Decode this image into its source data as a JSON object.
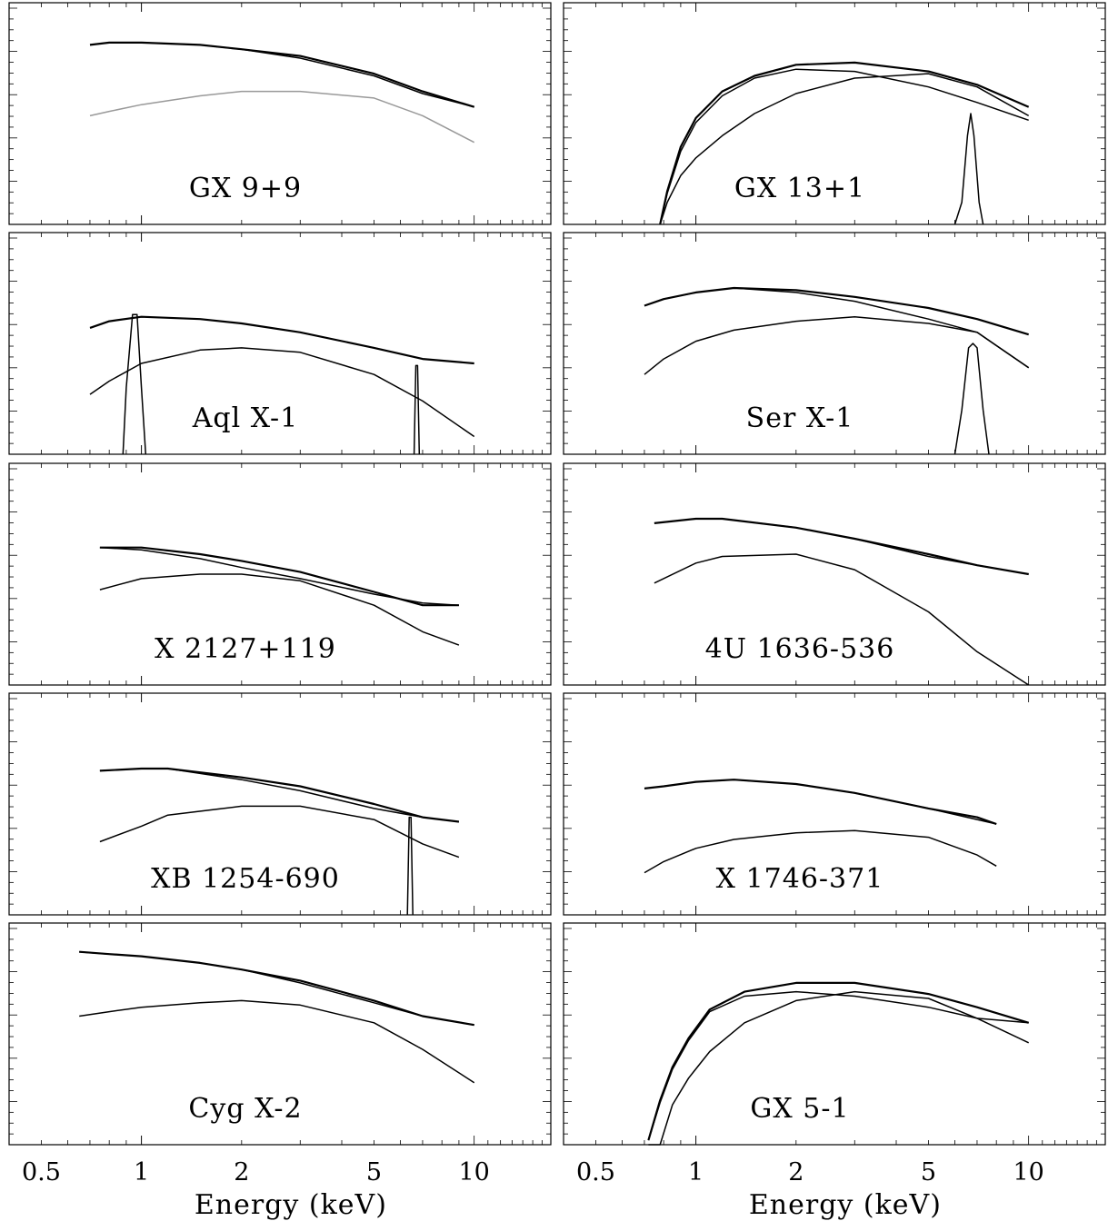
{
  "figure": {
    "xlabel": "Energy (keV)",
    "xticks": [
      "0.5",
      "1",
      "2",
      "5",
      "10"
    ]
  },
  "chart_data": [
    {
      "type": "line",
      "source": "GX 9+9",
      "xscale": "log",
      "xlim": [
        0.4,
        17
      ],
      "series": [
        {
          "style": "data",
          "color": "#000000",
          "x": [
            0.7,
            0.8,
            1.0,
            1.5,
            2,
            3,
            5,
            7,
            10
          ],
          "y": [
            0.81,
            0.82,
            0.82,
            0.81,
            0.79,
            0.76,
            0.68,
            0.6,
            0.53
          ]
        },
        {
          "style": "model",
          "color": "#000000",
          "x": [
            0.7,
            0.8,
            1.0,
            1.5,
            2,
            3,
            5,
            7,
            10
          ],
          "y": [
            0.81,
            0.82,
            0.82,
            0.81,
            0.79,
            0.75,
            0.67,
            0.59,
            0.53
          ]
        },
        {
          "style": "model",
          "color": "#999999",
          "x": [
            0.7,
            0.8,
            1.0,
            1.5,
            2,
            3,
            5,
            7,
            10
          ],
          "y": [
            0.49,
            0.51,
            0.54,
            0.58,
            0.6,
            0.6,
            0.57,
            0.49,
            0.37
          ]
        }
      ]
    },
    {
      "type": "line",
      "source": "GX 13+1",
      "xscale": "log",
      "xlim": [
        0.4,
        17
      ],
      "series": [
        {
          "style": "data",
          "color": "#000000",
          "x": [
            0.78,
            0.82,
            0.9,
            1.0,
            1.2,
            1.5,
            2,
            3,
            5,
            7,
            10
          ],
          "y": [
            0.0,
            0.15,
            0.35,
            0.48,
            0.6,
            0.67,
            0.72,
            0.73,
            0.69,
            0.63,
            0.53
          ]
        },
        {
          "style": "model",
          "color": "#000000",
          "x": [
            0.78,
            0.82,
            0.9,
            1.0,
            1.2,
            1.5,
            2,
            3,
            5,
            7,
            10
          ],
          "y": [
            0.0,
            0.14,
            0.33,
            0.46,
            0.58,
            0.66,
            0.7,
            0.69,
            0.62,
            0.55,
            0.47
          ]
        },
        {
          "style": "model",
          "color": "#000000",
          "x": [
            0.78,
            0.82,
            0.9,
            1.0,
            1.2,
            1.5,
            2,
            3,
            5,
            7,
            10
          ],
          "y": [
            0.0,
            0.1,
            0.22,
            0.3,
            0.4,
            0.5,
            0.59,
            0.66,
            0.68,
            0.62,
            0.49
          ]
        },
        {
          "style": "line",
          "color": "#000000",
          "x": [
            6.0,
            6.3,
            6.55,
            6.7,
            6.85,
            7.1,
            7.3
          ],
          "y": [
            0.0,
            0.1,
            0.4,
            0.5,
            0.4,
            0.1,
            0.0
          ]
        }
      ]
    },
    {
      "type": "line",
      "source": "Aql X-1",
      "xscale": "log",
      "xlim": [
        0.4,
        17
      ],
      "series": [
        {
          "style": "data",
          "color": "#000000",
          "x": [
            0.7,
            0.8,
            1.0,
            1.5,
            2,
            3,
            5,
            7,
            10
          ],
          "y": [
            0.57,
            0.6,
            0.62,
            0.61,
            0.59,
            0.55,
            0.48,
            0.43,
            0.41
          ]
        },
        {
          "style": "model",
          "color": "#000000",
          "x": [
            0.7,
            0.8,
            1.0,
            1.5,
            2,
            3,
            5,
            7,
            10
          ],
          "y": [
            0.27,
            0.33,
            0.41,
            0.47,
            0.48,
            0.46,
            0.36,
            0.24,
            0.08
          ]
        },
        {
          "style": "line",
          "color": "#000000",
          "x": [
            0.88,
            0.9,
            0.94,
            0.97,
            1.0,
            1.03
          ],
          "y": [
            0.0,
            0.3,
            0.63,
            0.63,
            0.3,
            0.0
          ]
        },
        {
          "style": "line",
          "color": "#000000",
          "x": [
            6.6,
            6.68,
            6.76,
            6.84
          ],
          "y": [
            0.0,
            0.4,
            0.4,
            0.0
          ]
        }
      ]
    },
    {
      "type": "line",
      "source": "Ser X-1",
      "xscale": "log",
      "xlim": [
        0.4,
        17
      ],
      "series": [
        {
          "style": "data",
          "color": "#000000",
          "x": [
            0.7,
            0.8,
            1.0,
            1.3,
            2,
            3,
            5,
            7,
            10
          ],
          "y": [
            0.67,
            0.7,
            0.73,
            0.75,
            0.74,
            0.71,
            0.66,
            0.61,
            0.54
          ]
        },
        {
          "style": "model",
          "color": "#000000",
          "x": [
            0.7,
            0.8,
            1.0,
            1.3,
            2,
            3,
            5,
            7,
            10
          ],
          "y": [
            0.67,
            0.7,
            0.73,
            0.75,
            0.73,
            0.69,
            0.61,
            0.55,
            0.39
          ]
        },
        {
          "style": "model",
          "color": "#000000",
          "x": [
            0.7,
            0.8,
            1.0,
            1.3,
            2,
            3,
            5,
            7,
            10
          ],
          "y": [
            0.36,
            0.43,
            0.51,
            0.56,
            0.6,
            0.62,
            0.59,
            0.55,
            0.39
          ]
        },
        {
          "style": "line",
          "color": "#000000",
          "x": [
            6.0,
            6.3,
            6.6,
            6.8,
            7.0,
            7.3,
            7.6
          ],
          "y": [
            0.0,
            0.2,
            0.48,
            0.5,
            0.48,
            0.2,
            0.0
          ]
        }
      ]
    },
    {
      "type": "line",
      "source": "X 2127+119",
      "xscale": "log",
      "xlim": [
        0.4,
        17
      ],
      "series": [
        {
          "style": "data",
          "color": "#000000",
          "x": [
            0.75,
            1.0,
            1.5,
            2,
            3,
            5,
            7,
            9
          ],
          "y": [
            0.62,
            0.62,
            0.59,
            0.56,
            0.51,
            0.42,
            0.36,
            0.36
          ]
        },
        {
          "style": "model",
          "color": "#000000",
          "x": [
            0.75,
            1.0,
            1.5,
            2,
            3,
            5,
            7,
            9
          ],
          "y": [
            0.62,
            0.61,
            0.57,
            0.53,
            0.48,
            0.41,
            0.37,
            0.36
          ]
        },
        {
          "style": "model",
          "color": "#000000",
          "x": [
            0.75,
            1.0,
            1.5,
            2,
            3,
            5,
            7,
            9
          ],
          "y": [
            0.43,
            0.48,
            0.5,
            0.5,
            0.47,
            0.36,
            0.24,
            0.18
          ]
        }
      ]
    },
    {
      "type": "line",
      "source": "4U 1636-536",
      "xscale": "log",
      "xlim": [
        0.4,
        17
      ],
      "series": [
        {
          "style": "data",
          "color": "#000000",
          "x": [
            0.75,
            1.0,
            1.2,
            2,
            3,
            5,
            7,
            10
          ],
          "y": [
            0.73,
            0.75,
            0.75,
            0.71,
            0.66,
            0.59,
            0.54,
            0.5
          ]
        },
        {
          "style": "model",
          "color": "#000000",
          "x": [
            0.75,
            1.0,
            1.2,
            2,
            3,
            5,
            7,
            10
          ],
          "y": [
            0.73,
            0.75,
            0.75,
            0.71,
            0.66,
            0.58,
            0.54,
            0.5
          ]
        },
        {
          "style": "model",
          "color": "#000000",
          "x": [
            0.75,
            1.0,
            1.2,
            2,
            3,
            5,
            7,
            10
          ],
          "y": [
            0.46,
            0.55,
            0.58,
            0.59,
            0.52,
            0.33,
            0.15,
            0.0
          ]
        }
      ]
    },
    {
      "type": "line",
      "source": "XB 1254-690",
      "xscale": "log",
      "xlim": [
        0.4,
        17
      ],
      "series": [
        {
          "style": "data",
          "color": "#000000",
          "x": [
            0.75,
            1.0,
            1.2,
            2,
            3,
            5,
            7,
            9
          ],
          "y": [
            0.65,
            0.66,
            0.66,
            0.62,
            0.58,
            0.5,
            0.44,
            0.42
          ]
        },
        {
          "style": "model",
          "color": "#000000",
          "x": [
            0.75,
            1.0,
            1.2,
            2,
            3,
            5,
            7,
            9
          ],
          "y": [
            0.65,
            0.66,
            0.66,
            0.61,
            0.56,
            0.48,
            0.44,
            0.42
          ]
        },
        {
          "style": "model",
          "color": "#000000",
          "x": [
            0.75,
            1.0,
            1.2,
            2,
            3,
            5,
            7,
            9
          ],
          "y": [
            0.33,
            0.4,
            0.45,
            0.49,
            0.49,
            0.43,
            0.32,
            0.26
          ]
        },
        {
          "style": "line",
          "color": "#000000",
          "x": [
            6.3,
            6.38,
            6.46,
            6.54
          ],
          "y": [
            0.0,
            0.44,
            0.44,
            0.0
          ]
        }
      ]
    },
    {
      "type": "line",
      "source": "X 1746-371",
      "xscale": "log",
      "xlim": [
        0.4,
        17
      ],
      "series": [
        {
          "style": "data",
          "color": "#000000",
          "x": [
            0.7,
            0.8,
            1.0,
            1.3,
            2,
            3,
            5,
            7,
            8
          ],
          "y": [
            0.57,
            0.58,
            0.6,
            0.61,
            0.59,
            0.55,
            0.48,
            0.44,
            0.41
          ]
        },
        {
          "style": "model",
          "color": "#000000",
          "x": [
            0.7,
            0.8,
            1.0,
            1.3,
            2,
            3,
            5,
            7,
            8
          ],
          "y": [
            0.57,
            0.58,
            0.6,
            0.61,
            0.59,
            0.55,
            0.48,
            0.43,
            0.41
          ]
        },
        {
          "style": "model",
          "color": "#000000",
          "x": [
            0.7,
            0.8,
            1.0,
            1.3,
            2,
            3,
            5,
            7,
            8
          ],
          "y": [
            0.19,
            0.24,
            0.3,
            0.34,
            0.37,
            0.38,
            0.35,
            0.27,
            0.22
          ]
        }
      ]
    },
    {
      "type": "line",
      "source": "Cyg X-2",
      "xscale": "log",
      "xlim": [
        0.4,
        17
      ],
      "series": [
        {
          "style": "data",
          "color": "#000000",
          "x": [
            0.65,
            0.8,
            1.0,
            1.5,
            2,
            3,
            5,
            7,
            10
          ],
          "y": [
            0.87,
            0.86,
            0.85,
            0.82,
            0.79,
            0.74,
            0.65,
            0.58,
            0.54
          ]
        },
        {
          "style": "model",
          "color": "#000000",
          "x": [
            0.65,
            0.8,
            1.0,
            1.5,
            2,
            3,
            5,
            7,
            10
          ],
          "y": [
            0.87,
            0.86,
            0.85,
            0.82,
            0.79,
            0.73,
            0.64,
            0.58,
            0.54
          ]
        },
        {
          "style": "model",
          "color": "#000000",
          "x": [
            0.65,
            0.8,
            1.0,
            1.5,
            2,
            3,
            5,
            7,
            10
          ],
          "y": [
            0.58,
            0.6,
            0.62,
            0.64,
            0.65,
            0.63,
            0.55,
            0.43,
            0.28
          ]
        }
      ]
    },
    {
      "type": "line",
      "source": "GX 5-1",
      "xscale": "log",
      "xlim": [
        0.4,
        17
      ],
      "series": [
        {
          "style": "data",
          "color": "#000000",
          "x": [
            0.72,
            0.78,
            0.85,
            0.95,
            1.1,
            1.4,
            2,
            3,
            5,
            7,
            10
          ],
          "y": [
            0.02,
            0.2,
            0.35,
            0.48,
            0.61,
            0.69,
            0.73,
            0.73,
            0.68,
            0.62,
            0.55
          ]
        },
        {
          "style": "model",
          "color": "#000000",
          "x": [
            0.72,
            0.78,
            0.85,
            0.95,
            1.1,
            1.4,
            2,
            3,
            5,
            7,
            10
          ],
          "y": [
            0.02,
            0.19,
            0.34,
            0.47,
            0.6,
            0.67,
            0.69,
            0.67,
            0.62,
            0.57,
            0.55
          ]
        },
        {
          "style": "model",
          "color": "#000000",
          "x": [
            0.72,
            0.78,
            0.85,
            0.95,
            1.1,
            1.4,
            2,
            3,
            5,
            7,
            10
          ],
          "y": [
            0.0,
            0.0,
            0.18,
            0.3,
            0.42,
            0.55,
            0.65,
            0.69,
            0.66,
            0.57,
            0.46
          ]
        }
      ]
    }
  ]
}
